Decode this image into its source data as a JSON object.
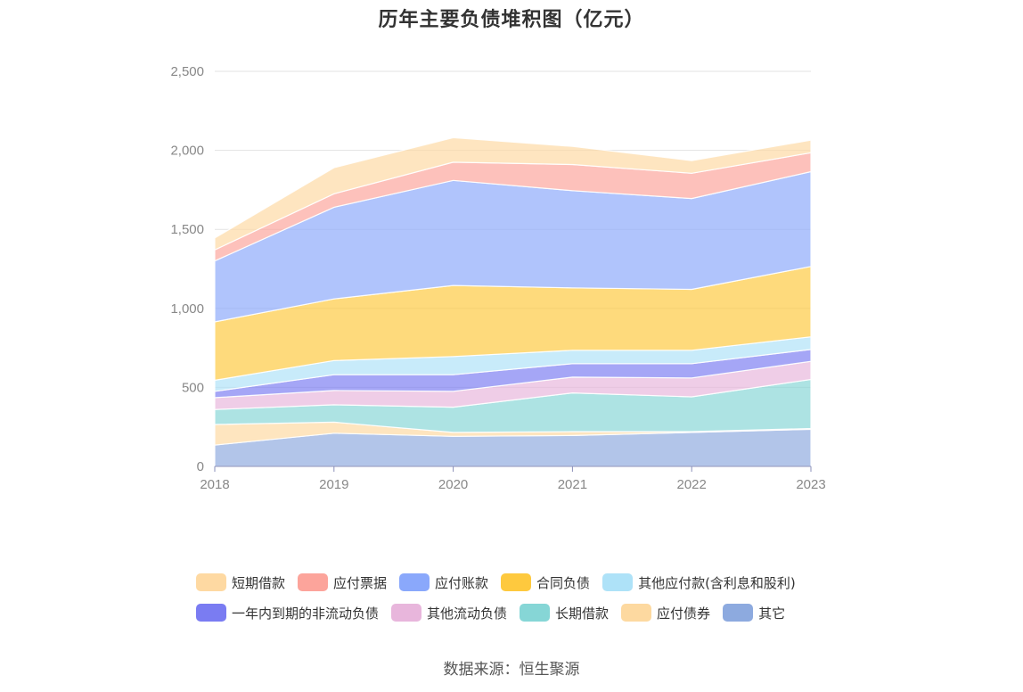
{
  "title": "历年主要负债堆积图（亿元）",
  "source": "数据来源：恒生聚源",
  "chart_data": {
    "type": "area",
    "stacked": true,
    "title": "历年主要负债堆积图（亿元）",
    "categories": [
      "2018",
      "2019",
      "2020",
      "2021",
      "2022",
      "2023"
    ],
    "ylim": [
      0,
      2500
    ],
    "yticks": [
      0,
      500,
      1000,
      1500,
      2000,
      2500
    ],
    "ytick_labels": [
      "0",
      "500",
      "1,000",
      "1,500",
      "2,000",
      "2,500"
    ],
    "grid": true,
    "legend_position": "bottom",
    "series": [
      {
        "name": "其它",
        "color": "#8daadf",
        "values": [
          135,
          210,
          190,
          195,
          215,
          235
        ]
      },
      {
        "name": "应付债券",
        "color": "#fdd9a0",
        "values": [
          130,
          70,
          25,
          25,
          5,
          5
        ]
      },
      {
        "name": "长期借款",
        "color": "#86d6d6",
        "values": [
          95,
          110,
          160,
          245,
          220,
          310
        ]
      },
      {
        "name": "其他流动负债",
        "color": "#e8b6dc",
        "values": [
          75,
          90,
          100,
          100,
          120,
          115
        ]
      },
      {
        "name": "一年内到期的非流动负债",
        "color": "#7a7cf2",
        "values": [
          40,
          100,
          105,
          85,
          90,
          75
        ]
      },
      {
        "name": "其他应付款(含利息和股利)",
        "color": "#aee2f8",
        "values": [
          70,
          90,
          115,
          85,
          85,
          80
        ]
      },
      {
        "name": "合同负债",
        "color": "#fec93e",
        "values": [
          370,
          390,
          450,
          395,
          385,
          445
        ]
      },
      {
        "name": "应付账款",
        "color": "#8aa8fb",
        "values": [
          385,
          580,
          665,
          615,
          575,
          600
        ]
      },
      {
        "name": "应付票据",
        "color": "#fca49b",
        "values": [
          70,
          85,
          115,
          165,
          160,
          120
        ]
      },
      {
        "name": "短期借款",
        "color": "#fed9a2",
        "values": [
          75,
          165,
          155,
          115,
          80,
          80
        ]
      }
    ]
  }
}
